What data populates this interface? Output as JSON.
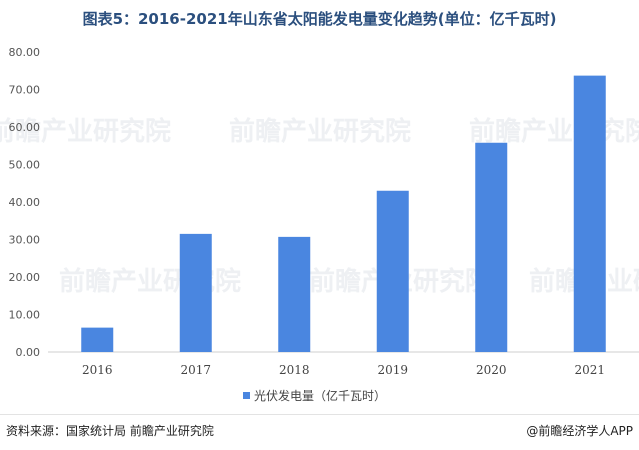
{
  "title": "图表5：2016-2021年山东省太阳能发电量变化趋势(单位：亿千瓦时)",
  "chart_data": {
    "type": "bar",
    "categories": [
      "2016",
      "2017",
      "2018",
      "2019",
      "2020",
      "2021"
    ],
    "series": [
      {
        "name": "光伏发电量（亿千瓦时）",
        "values": [
          6.5,
          31.5,
          30.7,
          43.0,
          55.8,
          73.7
        ],
        "color": "#4a86e0"
      }
    ],
    "ylim": [
      0,
      80
    ],
    "yticks": [
      "0.00",
      "10.00",
      "20.00",
      "30.00",
      "40.00",
      "50.00",
      "60.00",
      "70.00",
      "80.00"
    ],
    "grid": false,
    "legend_position": "bottom"
  },
  "watermark": "前瞻产业研究院",
  "footer": {
    "source": "资料来源：国家统计局 前瞻产业研究院",
    "brand": "@前瞻经济学人APP"
  }
}
